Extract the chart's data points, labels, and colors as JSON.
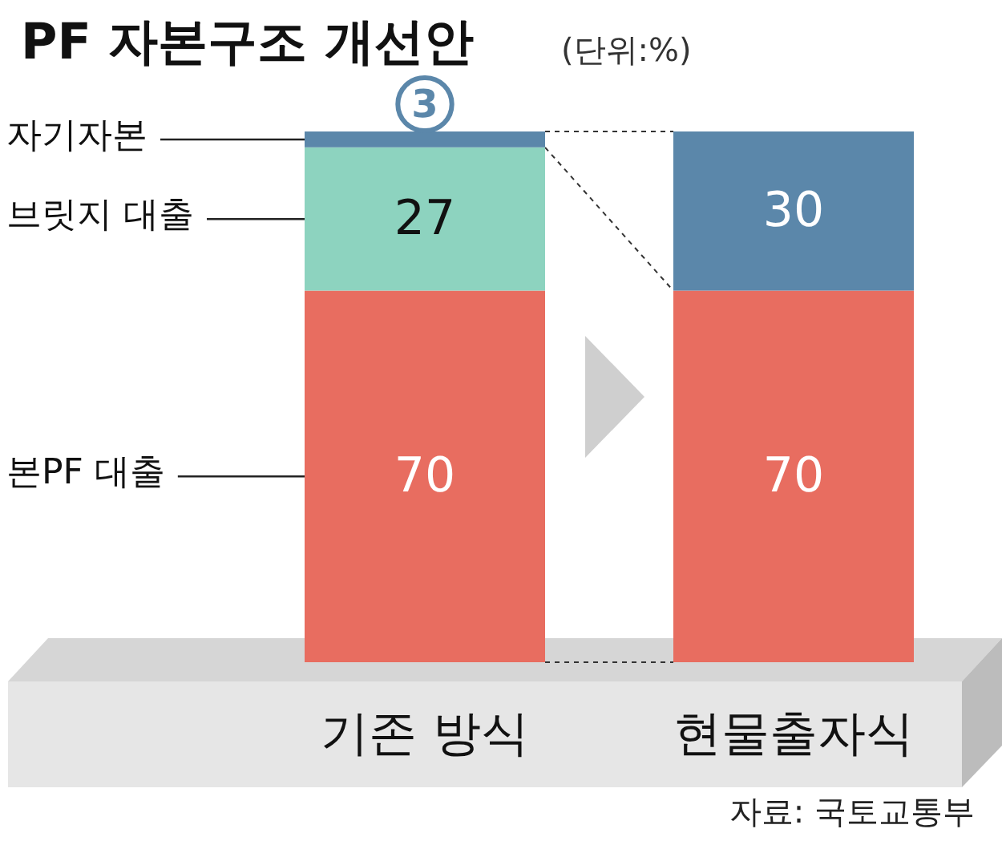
{
  "chart_data": {
    "type": "bar",
    "stacked": true,
    "title": "PF 자본구조 개선안",
    "subtitle": "(단위:%)",
    "categories": [
      "기존 방식",
      "현물출자식"
    ],
    "series": [
      {
        "name": "본PF 대출",
        "color": "#e86d60",
        "values": [
          70,
          70
        ]
      },
      {
        "name": "브릿지 대출",
        "color": "#8dd3bf",
        "values": [
          27,
          null
        ]
      },
      {
        "name": "자기자본",
        "color": "#5b87aa",
        "values": [
          3,
          30
        ]
      }
    ],
    "data_labels": true,
    "annotations": [
      "자료: 국토교통부"
    ]
  }
}
